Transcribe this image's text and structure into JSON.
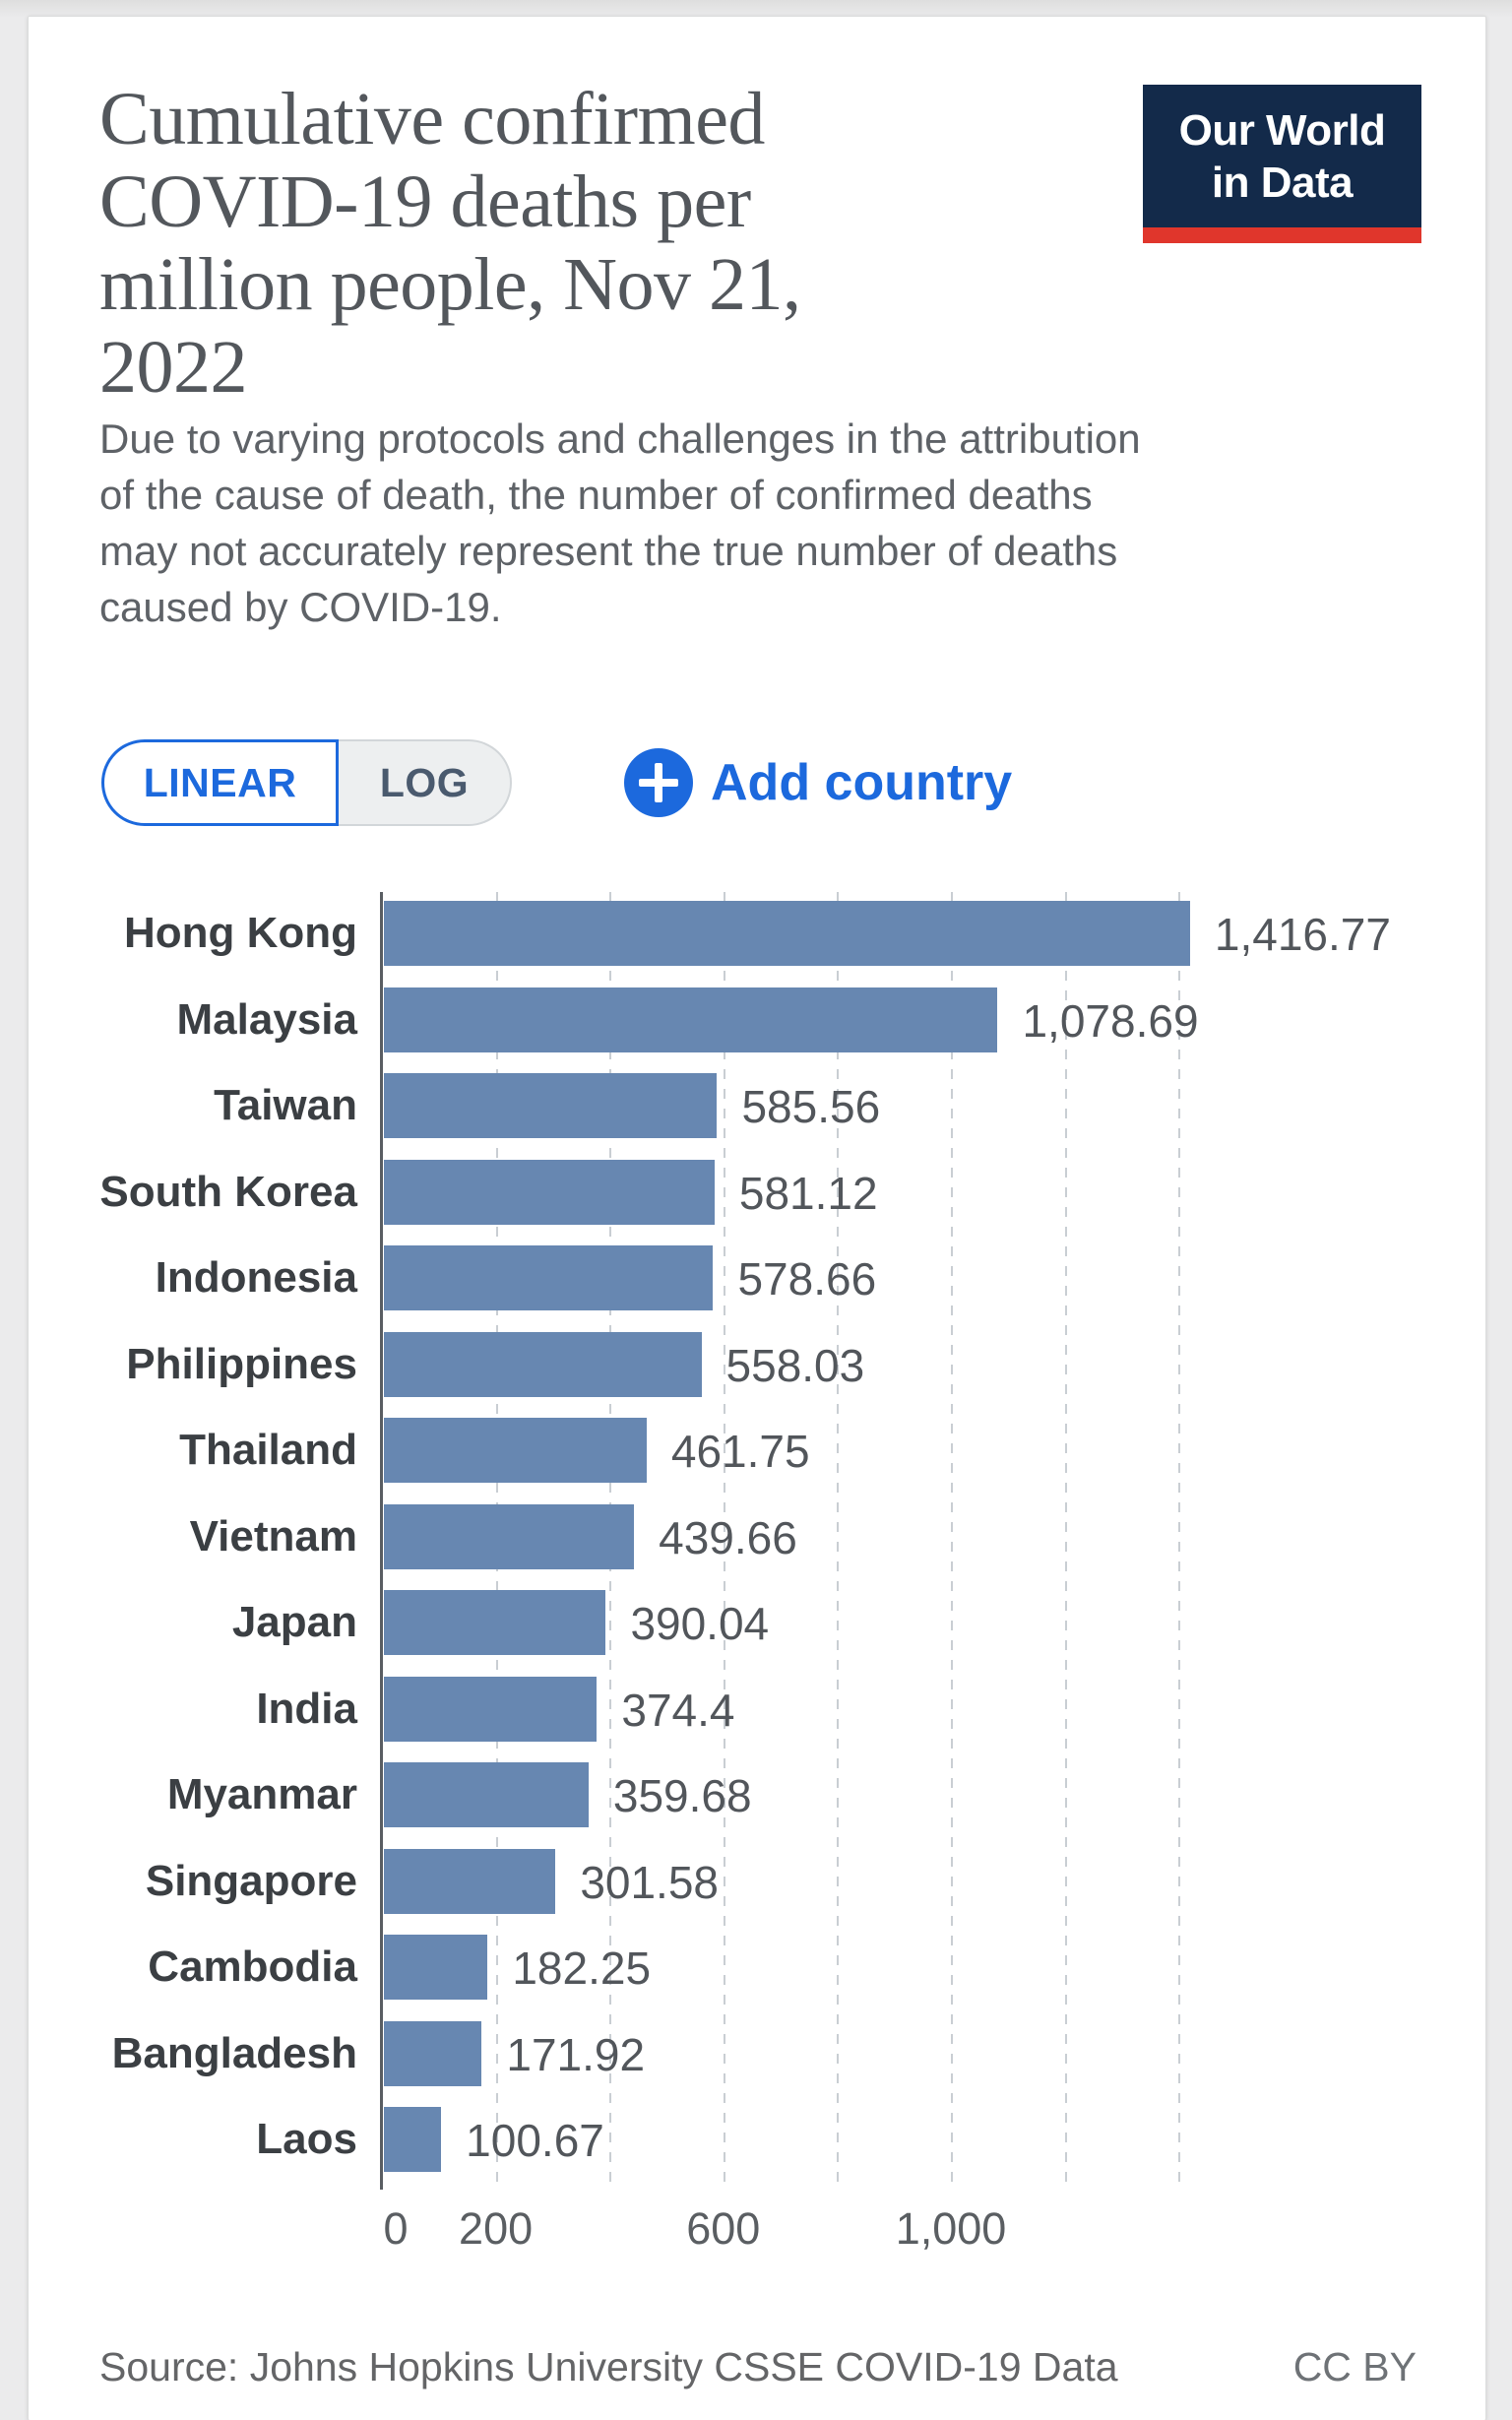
{
  "page": {
    "title_lines": [
      "Cumulative confirmed",
      "COVID-19 deaths per",
      "million people, Nov 21,",
      "2022"
    ],
    "subtitle_lines": [
      "Due to varying protocols and challenges in the attribution",
      "of the cause of death, the number of confirmed deaths",
      "may not accurately represent the true number of deaths",
      "caused by COVID-19."
    ],
    "logo": {
      "line1": "Our World",
      "line2": "in Data"
    },
    "controls": {
      "linear_label": "LINEAR",
      "log_label": "LOG",
      "add_country_label": "Add country",
      "add_country_icon": "plus-circle-icon"
    },
    "footer": {
      "source": "Source: Johns Hopkins University CSSE COVID-19 Data",
      "license": "CC BY"
    }
  },
  "colors": {
    "accent_blue": "#1c69dd",
    "bar_blue": "#6787b1",
    "logo_navy": "#132a4a",
    "logo_red": "#e0362c"
  },
  "chart_data": {
    "type": "bar",
    "orientation": "horizontal",
    "title": "Cumulative confirmed COVID-19 deaths per million people, Nov 21, 2022",
    "subtitle": "Due to varying protocols and challenges in the attribution of the cause of death, the number of confirmed deaths may not accurately represent the true number of deaths caused by COVID-19.",
    "categories": [
      "Hong Kong",
      "Malaysia",
      "Taiwan",
      "South Korea",
      "Indonesia",
      "Philippines",
      "Thailand",
      "Vietnam",
      "Japan",
      "India",
      "Myanmar",
      "Singapore",
      "Cambodia",
      "Bangladesh",
      "Laos"
    ],
    "values": [
      1416.77,
      1078.69,
      585.56,
      581.12,
      578.66,
      558.03,
      461.75,
      439.66,
      390.04,
      374.4,
      359.68,
      301.58,
      182.25,
      171.92,
      100.67
    ],
    "value_labels": [
      "1,416.77",
      "1,078.69",
      "585.56",
      "581.12",
      "578.66",
      "558.03",
      "461.75",
      "439.66",
      "390.04",
      "374.4",
      "359.68",
      "301.58",
      "182.25",
      "171.92",
      "100.67"
    ],
    "xlabel": "",
    "ylabel": "",
    "xlim": [
      0,
      1500
    ],
    "xticks": [
      {
        "value": 0,
        "label": "0"
      },
      {
        "value": 200,
        "label": "200"
      },
      {
        "value": 600,
        "label": "600"
      },
      {
        "value": 1000,
        "label": "1,000"
      }
    ],
    "gridline_values": [
      200,
      400,
      600,
      800,
      1000,
      1200,
      1400
    ],
    "grid": "vertical-dashed",
    "legend": "none",
    "bar_color": "#6787b1",
    "scale": "linear",
    "source": "Johns Hopkins University CSSE COVID-19 Data",
    "license": "CC BY"
  }
}
